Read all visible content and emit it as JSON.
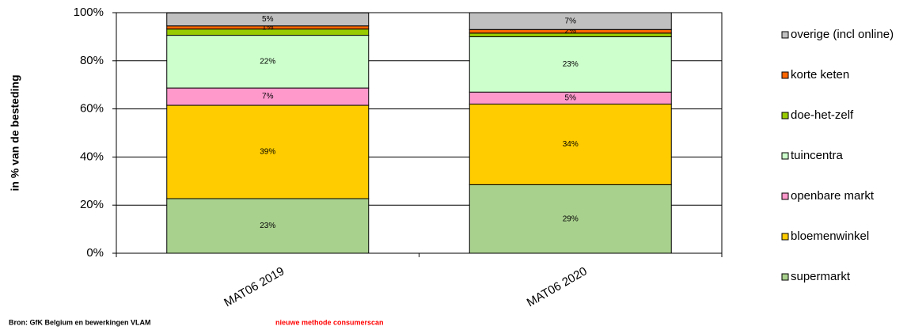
{
  "chart_data": {
    "type": "stacked_bar",
    "categories": [
      "MAT06 2019",
      "MAT06 2020"
    ],
    "ylabel": "in % van de besteding",
    "ylim": [
      0,
      100
    ],
    "yticks": [
      {
        "value": 0,
        "label": "0%"
      },
      {
        "value": 20,
        "label": "20%"
      },
      {
        "value": 40,
        "label": "40%"
      },
      {
        "value": 60,
        "label": "60%"
      },
      {
        "value": 80,
        "label": "80%"
      },
      {
        "value": 100,
        "label": "100%"
      }
    ],
    "grid": true,
    "legend": "right",
    "series": [
      {
        "name": "supermarkt",
        "color": "#a9d18e",
        "values": [
          22.7,
          28.5
        ],
        "value_labels": [
          "23%",
          "29%"
        ]
      },
      {
        "name": "bloemenwinkel",
        "color": "#ffcc00",
        "values": [
          38.8,
          33.5
        ],
        "value_labels": [
          "39%",
          "34%"
        ]
      },
      {
        "name": "openbare markt",
        "color": "#ff99cc",
        "values": [
          7.2,
          5
        ],
        "value_labels": [
          "7%",
          "5%"
        ]
      },
      {
        "name": "tuincentra",
        "color": "#ccffcc",
        "values": [
          21.9,
          23
        ],
        "value_labels": [
          "22%",
          "23%"
        ]
      },
      {
        "name": "doe-het-zelf",
        "color": "#99cc00",
        "values": [
          2.6,
          1.5
        ]
      },
      {
        "name": "korte keten",
        "color": "#ff6600",
        "values": [
          1.3,
          1.5
        ],
        "value_labels": [
          "1%",
          "2%"
        ]
      },
      {
        "name": "overige (incl online)",
        "color": "#c0c0c0",
        "values": [
          5.4,
          7
        ],
        "value_labels": [
          "5%",
          "7%"
        ]
      }
    ],
    "annotations": [
      "Bron: GfK Belgium  en bewerkingen  VLAM",
      "nieuwe methode consumerscan"
    ]
  }
}
